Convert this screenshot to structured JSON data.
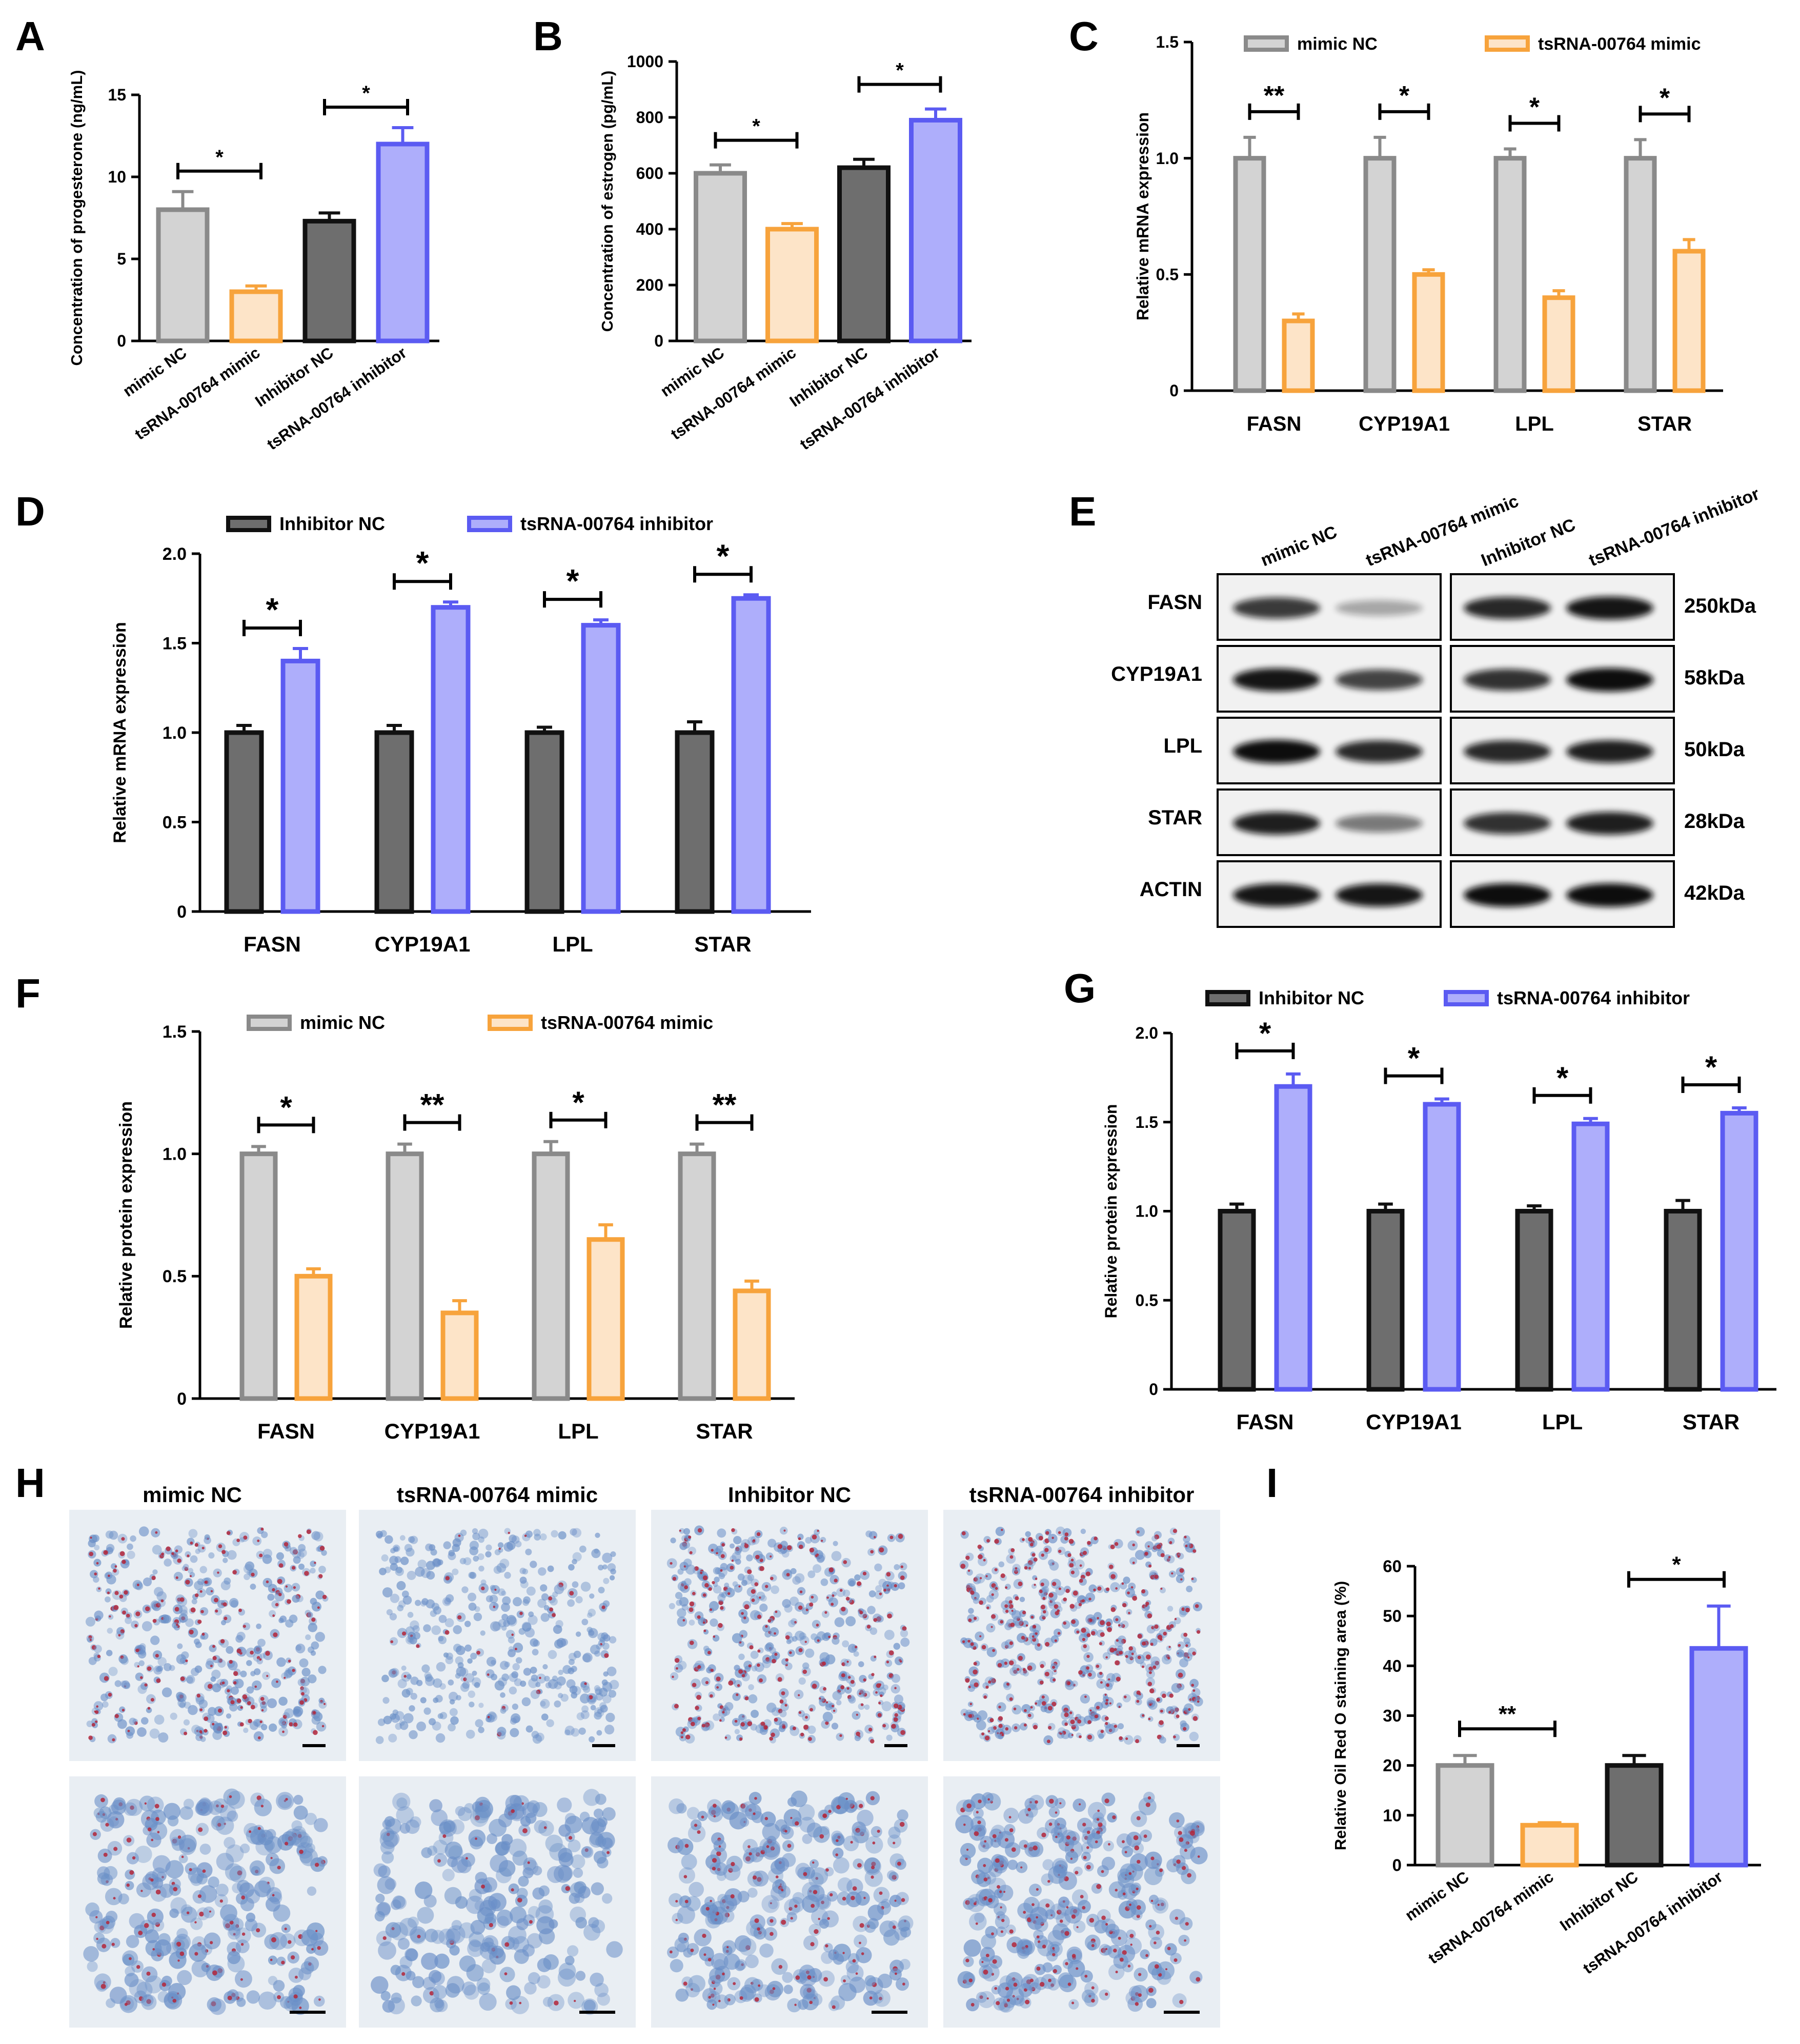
{
  "figure": {
    "panel_letters": {
      "A": "A",
      "B": "B",
      "C": "C",
      "D": "D",
      "E": "E",
      "F": "F",
      "G": "G",
      "H": "H",
      "I": "I"
    }
  },
  "colors": {
    "mimic_nc_stroke": "#8a8a8a",
    "mimic_nc_fill": "#d3d3d3",
    "mimic_stroke": "#f7a33c",
    "mimic_fill": "#fde4c8",
    "inhib_nc_stroke": "#111111",
    "inhib_nc_fill": "#6e6e6e",
    "inhib_stroke": "#5b5bf2",
    "inhib_fill": "#aeaefb",
    "axis": "#000000",
    "tissue_bg": "#e9eef3",
    "tissue_blue": "#6a8fc7",
    "tissue_red": "#b3263a"
  },
  "chart_data": [
    {
      "id": "A",
      "type": "bar",
      "ylabel": "Concentration of progesterone (ng/mL)",
      "ylim": [
        0,
        15
      ],
      "yticks": [
        0,
        5,
        10,
        15
      ],
      "categories": [
        "mimic  NC",
        "tsRNA-00764 mimic",
        "Inhibitor NC",
        "tsRNA-00764 inhibitor"
      ],
      "values": [
        8.0,
        3.0,
        7.3,
        12.0
      ],
      "errors": [
        1.1,
        0.35,
        0.5,
        1.0
      ],
      "styles": [
        "mimic_nc",
        "mimic",
        "inhib_nc",
        "inhib"
      ],
      "significance": [
        {
          "pair": [
            0,
            1
          ],
          "label": "*"
        },
        {
          "pair": [
            2,
            3
          ],
          "label": "*"
        }
      ]
    },
    {
      "id": "B",
      "type": "bar",
      "ylabel": "Concentration of  estrogen (pg/mL)",
      "ylim": [
        0,
        1000
      ],
      "yticks": [
        0,
        200,
        400,
        600,
        800,
        1000
      ],
      "categories": [
        "mimic  NC",
        "tsRNA-00764 mimic",
        "Inhibitor NC",
        "tsRNA-00764 inhibitor"
      ],
      "values": [
        600,
        400,
        620,
        790
      ],
      "errors": [
        30,
        20,
        30,
        40
      ],
      "styles": [
        "mimic_nc",
        "mimic",
        "inhib_nc",
        "inhib"
      ],
      "significance": [
        {
          "pair": [
            0,
            1
          ],
          "label": "*"
        },
        {
          "pair": [
            2,
            3
          ],
          "label": "*"
        }
      ]
    },
    {
      "id": "C",
      "type": "bar",
      "ylabel": "Relative mRNA expression",
      "ylim": [
        0,
        1.5
      ],
      "yticks": [
        "0",
        "0.5",
        "1.0",
        "1.5"
      ],
      "categories": [
        "FASN",
        "CYP19A1",
        "LPL",
        "STAR"
      ],
      "series": [
        {
          "name": "mimic  NC",
          "style": "mimic_nc",
          "values": [
            1.0,
            1.0,
            1.0,
            1.0
          ],
          "errors": [
            0.09,
            0.09,
            0.04,
            0.08
          ]
        },
        {
          "name": "tsRNA-00764 mimic",
          "style": "mimic",
          "values": [
            0.3,
            0.5,
            0.4,
            0.6
          ],
          "errors": [
            0.03,
            0.02,
            0.03,
            0.05
          ]
        }
      ],
      "significance": [
        "**",
        "*",
        "*",
        "*"
      ]
    },
    {
      "id": "D",
      "type": "bar",
      "ylabel": "Relative mRNA expression",
      "ylim": [
        0,
        2.0
      ],
      "yticks": [
        "0",
        "0.5",
        "1.0",
        "1.5",
        "2.0"
      ],
      "categories": [
        "FASN",
        "CYP19A1",
        "LPL",
        "STAR"
      ],
      "series": [
        {
          "name": "Inhibitor NC",
          "style": "inhib_nc",
          "values": [
            1.0,
            1.0,
            1.0,
            1.0
          ],
          "errors": [
            0.04,
            0.04,
            0.03,
            0.06
          ]
        },
        {
          "name": "tsRNA-00764 inhibitor",
          "style": "inhib",
          "values": [
            1.4,
            1.7,
            1.6,
            1.75
          ],
          "errors": [
            0.07,
            0.03,
            0.03,
            0.02
          ]
        }
      ],
      "significance": [
        "*",
        "*",
        "*",
        "*"
      ]
    },
    {
      "id": "F",
      "type": "bar",
      "ylabel": "Relative protein expression",
      "ylim": [
        0,
        1.5
      ],
      "yticks": [
        "0",
        "0.5",
        "1.0",
        "1.5"
      ],
      "categories": [
        "FASN",
        "CYP19A1",
        "LPL",
        "STAR"
      ],
      "series": [
        {
          "name": "mimic  NC",
          "style": "mimic_nc",
          "values": [
            1.0,
            1.0,
            1.0,
            1.0
          ],
          "errors": [
            0.03,
            0.04,
            0.05,
            0.04
          ]
        },
        {
          "name": "tsRNA-00764 mimic",
          "style": "mimic",
          "values": [
            0.5,
            0.35,
            0.65,
            0.44
          ],
          "errors": [
            0.03,
            0.05,
            0.06,
            0.04
          ]
        }
      ],
      "significance": [
        "*",
        "**",
        "*",
        "**"
      ]
    },
    {
      "id": "G",
      "type": "bar",
      "ylabel": "Relative protein  expression",
      "ylim": [
        0,
        2.0
      ],
      "yticks": [
        "0",
        "0.5",
        "1.0",
        "1.5",
        "2.0"
      ],
      "categories": [
        "FASN",
        "CYP19A1",
        "LPL",
        "STAR"
      ],
      "series": [
        {
          "name": "Inhibitor NC",
          "style": "inhib_nc",
          "values": [
            1.0,
            1.0,
            1.0,
            1.0
          ],
          "errors": [
            0.04,
            0.04,
            0.03,
            0.06
          ]
        },
        {
          "name": "tsRNA-00764 inhibitor",
          "style": "inhib",
          "values": [
            1.7,
            1.6,
            1.49,
            1.55
          ],
          "errors": [
            0.07,
            0.03,
            0.03,
            0.03
          ]
        }
      ],
      "significance": [
        "*",
        "*",
        "*",
        "*"
      ]
    },
    {
      "id": "I",
      "type": "bar",
      "ylabel": "Relative  Oil Red  O staining area (%)",
      "ylim": [
        0,
        60
      ],
      "yticks": [
        0,
        10,
        20,
        30,
        40,
        50,
        60
      ],
      "categories": [
        "mimic  NC",
        "tsRNA-00764 mimic",
        "Inhibitor NC",
        "tsRNA-00764 inhibitor"
      ],
      "values": [
        20,
        8,
        20,
        43.5
      ],
      "errors": [
        2,
        0.5,
        2,
        8.5
      ],
      "styles": [
        "mimic_nc",
        "mimic",
        "inhib_nc",
        "inhib"
      ],
      "significance": [
        {
          "pair": [
            0,
            1
          ],
          "label": "**"
        },
        {
          "pair": [
            2,
            3
          ],
          "label": "*"
        }
      ]
    }
  ],
  "western_blot": {
    "columns": [
      "mimic  NC",
      "tsRNA-00764 mimic",
      "Inhibitor NC",
      "tsRNA-00764 inhibitor"
    ],
    "rows": [
      {
        "protein": "FASN",
        "size": "250kDa",
        "intensity": [
          0.75,
          0.15,
          0.85,
          0.95
        ]
      },
      {
        "protein": "CYP19A1",
        "size": "58kDa",
        "intensity": [
          0.95,
          0.7,
          0.8,
          1.0
        ]
      },
      {
        "protein": "LPL",
        "size": "50kDa",
        "intensity": [
          1.0,
          0.85,
          0.85,
          0.9
        ]
      },
      {
        "protein": "STAR",
        "size": "28kDa",
        "intensity": [
          0.9,
          0.4,
          0.8,
          0.9
        ]
      },
      {
        "protein": "ACTIN",
        "size": "42kDa",
        "intensity": [
          0.95,
          0.95,
          1.0,
          1.0
        ]
      }
    ]
  },
  "staining": {
    "titles": [
      "mimic  NC",
      "tsRNA-00764 mimic",
      "Inhibitor NC",
      "tsRNA-00764 inhibitor"
    ],
    "red_density": [
      0.55,
      0.12,
      0.65,
      0.95
    ]
  }
}
